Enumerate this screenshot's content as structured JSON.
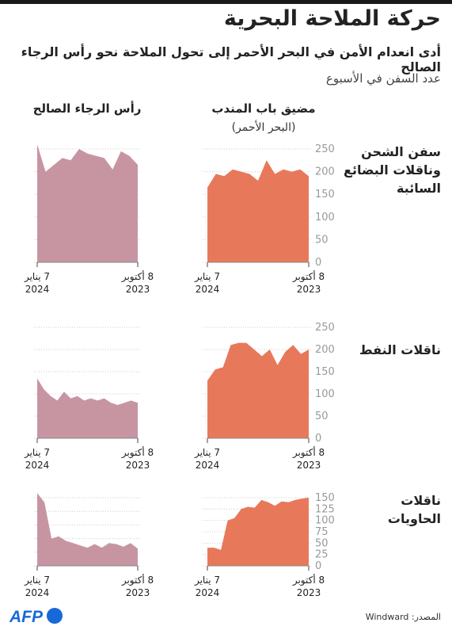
{
  "title": "حركة الملاحة البحرية",
  "subtitle": "أدى انعدام الأمن في البحر الأحمر إلى تحول الملاحة نحو رأس الرجاء الصالح",
  "unit_label": "عدد السفن في الأسبوع",
  "columns": {
    "bab": {
      "title": "مضيق باب المندب",
      "subtitle": "(البحر الأحمر)"
    },
    "cape": {
      "title": "رأس الرجاء الصالح"
    }
  },
  "rows": {
    "bulk": "سفن الشحن وناقلات البضائع السائبة",
    "oil": "ناقلات النفط",
    "containers": "ناقلات الحاويات"
  },
  "x_labels": {
    "start_line1": "8 أكتوبر",
    "start_line2": "2023",
    "end_line1": "7 يناير",
    "end_line2": "2024"
  },
  "source": "المصدر: Windward",
  "logo_text": "AFP",
  "colors": {
    "bab": "#e8785a",
    "cape": "#c795a2",
    "grid": "#cccccc",
    "axis_text": "#999999"
  },
  "chart_data": [
    {
      "type": "area",
      "row": "bulk",
      "column": "bab",
      "ylim": [
        0,
        250
      ],
      "yticks": [
        0,
        50,
        100,
        150,
        200,
        250
      ],
      "values": [
        190,
        205,
        200,
        205,
        195,
        225,
        180,
        195,
        200,
        205,
        190,
        195,
        165
      ]
    },
    {
      "type": "area",
      "row": "bulk",
      "column": "cape",
      "ylim": [
        0,
        250
      ],
      "values": [
        215,
        235,
        245,
        205,
        230,
        235,
        240,
        250,
        225,
        230,
        215,
        200,
        260
      ]
    },
    {
      "type": "area",
      "row": "oil",
      "column": "bab",
      "ylim": [
        0,
        250
      ],
      "yticks": [
        0,
        50,
        100,
        150,
        200,
        250
      ],
      "values": [
        200,
        190,
        210,
        195,
        165,
        200,
        185,
        200,
        215,
        215,
        210,
        160,
        155,
        130
      ]
    },
    {
      "type": "area",
      "row": "oil",
      "column": "cape",
      "ylim": [
        0,
        250
      ],
      "values": [
        80,
        85,
        80,
        75,
        80,
        90,
        85,
        90,
        85,
        95,
        90,
        105,
        85,
        95,
        110,
        135
      ]
    },
    {
      "type": "area",
      "row": "containers",
      "column": "bab",
      "ylim": [
        0,
        150
      ],
      "yticks": [
        0,
        25,
        50,
        75,
        100,
        125,
        150
      ],
      "values": [
        150,
        148,
        145,
        140,
        142,
        132,
        140,
        145,
        128,
        130,
        125,
        105,
        100,
        35,
        40,
        40
      ]
    },
    {
      "type": "area",
      "row": "containers",
      "column": "cape",
      "ylim": [
        0,
        150
      ],
      "values": [
        38,
        50,
        42,
        48,
        50,
        40,
        48,
        40,
        45,
        50,
        55,
        65,
        60,
        140,
        160
      ]
    }
  ]
}
